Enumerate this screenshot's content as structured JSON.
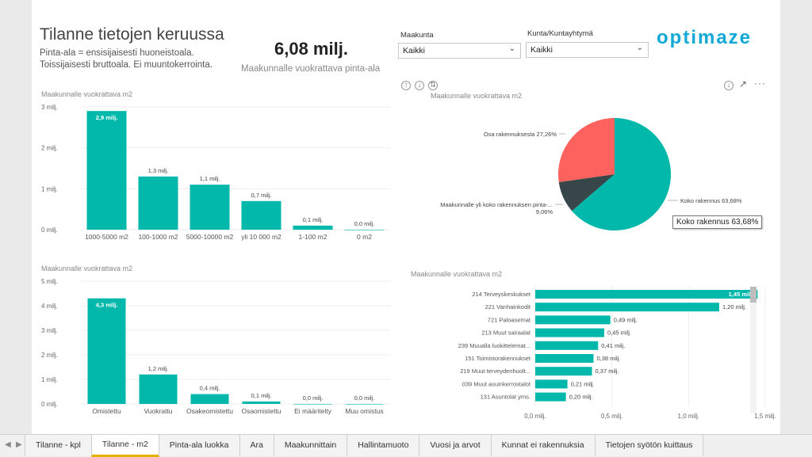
{
  "header": {
    "title": "Tilanne tietojen keruussa",
    "subtitle_line1": "Pinta-ala = ensisijaisesti huoneistoala.",
    "subtitle_line2": "Toissijaisesti bruttoala. Ei muuntokerrointa.",
    "kpi_value": "6,08 milj.",
    "kpi_label": "Maakunnalle vuokrattava pinta-ala"
  },
  "filters": {
    "maakunta_label": "Maakunta",
    "maakunta_value": "Kaikki",
    "kunta_label": "Kunta/Kuntayhtymä",
    "kunta_value": "Kaikki"
  },
  "logo": "optimaze",
  "tooltip": "Koko rakennus 63,68%",
  "chart_data": [
    {
      "type": "bar",
      "title": "Maakunnalle vuokrattava m2",
      "categories": [
        "1000-5000 m2",
        "100-1000 m2",
        "5000-10000 m2",
        "yli 10 000 m2",
        "1-100 m2",
        "0 m2"
      ],
      "values": [
        2.9,
        1.3,
        1.1,
        0.7,
        0.1,
        0.0
      ],
      "data_labels": [
        "2,9 milj.",
        "1,3 milj.",
        "1,1 milj.",
        "0,7 milj.",
        "0,1 milj.",
        "0,0 milj."
      ],
      "y_ticks": [
        "3 milj.",
        "2 milj.",
        "1 milj.",
        "0 milj."
      ],
      "ylim": [
        0,
        3
      ],
      "color": "#01b8aa"
    },
    {
      "type": "bar",
      "title": "Maakunnalle vuokrattava m2",
      "categories": [
        "Omistettu",
        "Vuokrattu",
        "Osakeomistettu",
        "Osaomistettu",
        "Ei määritelty",
        "Muu omistus"
      ],
      "values": [
        4.3,
        1.2,
        0.4,
        0.1,
        0.0,
        0.0
      ],
      "data_labels": [
        "4,3 milj.",
        "1,2 milj.",
        "0,4 milj.",
        "0,1 milj.",
        "0,0 milj.",
        "0,0 milj."
      ],
      "y_ticks": [
        "5 milj.",
        "4 milj.",
        "3 milj.",
        "2 milj.",
        "1 milj.",
        "0 milj."
      ],
      "ylim": [
        0,
        5
      ],
      "color": "#01b8aa"
    },
    {
      "type": "pie",
      "title": "Maakunnalle vuokrattava m2",
      "slices": [
        {
          "label": "Koko rakennus 63,68%",
          "value": 63.68,
          "color": "#01b8aa"
        },
        {
          "label": "Maakunnalle yli koko rakennuksen pinta-...",
          "label2": "9,06%",
          "value": 9.06,
          "color": "#374649"
        },
        {
          "label": "Osa rakennuksesta 27,26%",
          "value": 27.26,
          "color": "#fd625e"
        }
      ]
    },
    {
      "type": "bar",
      "orientation": "horizontal",
      "title": "Maakunnalle vuokrattava m2",
      "categories": [
        "214 Terveyskeskukset",
        "221 Vanhainkodit",
        "721 Paloasemat",
        "213 Muut sairaalat",
        "239 Muualla luokittelemat...",
        "151 Toimistorakennukset",
        "219 Muut terveydenhuolt...",
        "039 Muut asuinkerrostalot",
        "131 Asuntolat yms."
      ],
      "values": [
        1.45,
        1.2,
        0.49,
        0.45,
        0.41,
        0.38,
        0.37,
        0.21,
        0.2
      ],
      "data_labels": [
        "1,45 milj.",
        "1,20 milj.",
        "0,49 milj.",
        "0,45 milj.",
        "0,41 milj.",
        "0,38 milj.",
        "0,37 milj.",
        "0,21 milj.",
        "0,20 milj."
      ],
      "x_ticks": [
        "0,0 milj.",
        "0,5 milj.",
        "1,0 milj.",
        "1,5 milj."
      ],
      "xlim": [
        0,
        1.5
      ],
      "color": "#01b8aa"
    }
  ],
  "tabs": [
    "Tilanne - kpl",
    "Tilanne - m2",
    "Pinta-ala luokka",
    "Ara",
    "Maakunnittain",
    "Hallintamuoto",
    "Vuosi ja arvot",
    "Kunnat ei rakennuksia",
    "Tietojen syötön kuittaus"
  ],
  "active_tab": "Tilanne - m2",
  "icons": [
    "drill-up-icon",
    "drill-down-icon",
    "expand-all-icon",
    "download-icon",
    "focus-mode-icon",
    "more-options-icon",
    "nav-left-icon",
    "nav-right-icon",
    "chevron-down-icon"
  ]
}
